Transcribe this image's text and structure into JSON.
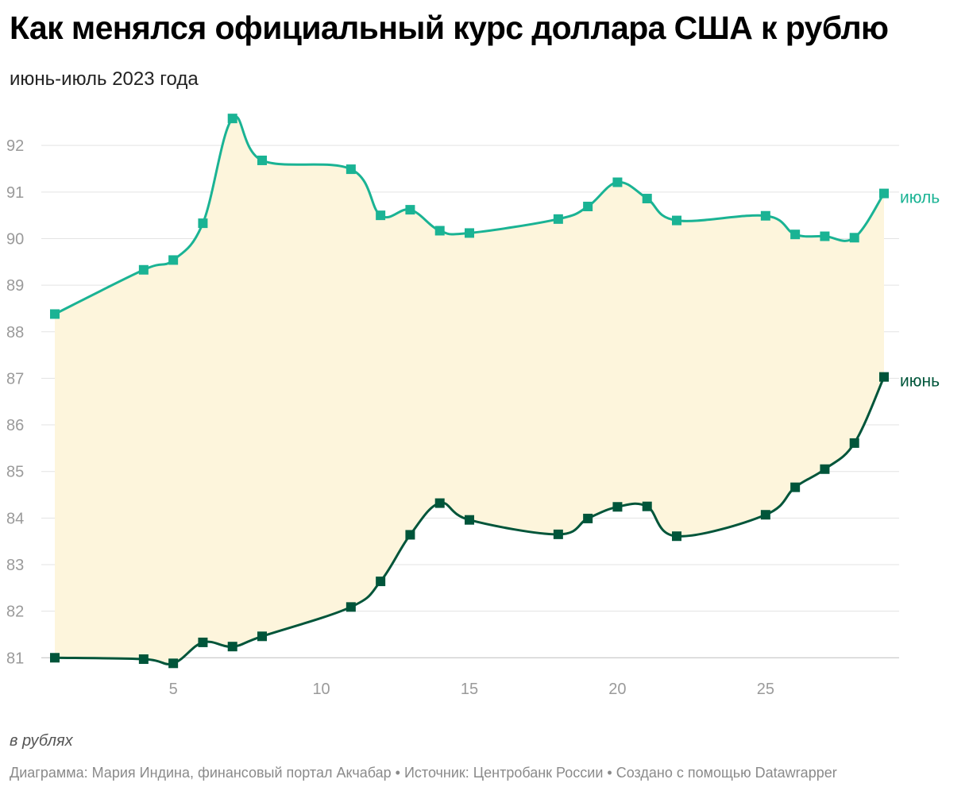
{
  "header": {
    "title": "Как менялся официальный курс доллара США к рублю",
    "subtitle": "июнь-июль 2023 года"
  },
  "notes": "в рублях",
  "footer": {
    "credit": "Диаграмма: Мария Индина, финансовый портал Акчабар • Источник: Центробанк России • Создано с помощью Datawrapper"
  },
  "chart_data": {
    "type": "line",
    "xlim": [
      1,
      29
    ],
    "ylim": [
      80.8,
      92.6
    ],
    "x_ticks": [
      5,
      10,
      15,
      20,
      25
    ],
    "y_ticks": [
      81,
      82,
      83,
      84,
      85,
      86,
      87,
      88,
      89,
      90,
      91,
      92
    ],
    "grid": true,
    "area_between_series": true,
    "series": [
      {
        "name": "июль",
        "color": "#1ab394",
        "x": [
          1,
          4,
          5,
          6,
          7,
          8,
          11,
          12,
          13,
          14,
          15,
          18,
          19,
          20,
          21,
          22,
          25,
          26,
          27,
          28,
          29
        ],
        "values": [
          88.38,
          89.33,
          89.54,
          90.33,
          92.58,
          91.68,
          91.49,
          90.5,
          90.62,
          90.17,
          90.12,
          90.42,
          90.69,
          91.21,
          90.86,
          90.39,
          90.49,
          90.09,
          90.05,
          90.02,
          90.97
        ]
      },
      {
        "name": "июнь",
        "color": "#00553a",
        "x": [
          1,
          4,
          5,
          6,
          7,
          8,
          11,
          12,
          13,
          14,
          15,
          18,
          19,
          20,
          21,
          22,
          25,
          26,
          27,
          28,
          29
        ],
        "values": [
          81.0,
          80.97,
          80.88,
          81.33,
          81.24,
          81.46,
          82.09,
          82.64,
          83.64,
          84.32,
          83.96,
          83.65,
          83.99,
          84.24,
          84.25,
          83.61,
          84.07,
          84.66,
          85.05,
          85.61,
          87.03
        ]
      }
    ],
    "fill_color": "#fdf5dc"
  }
}
